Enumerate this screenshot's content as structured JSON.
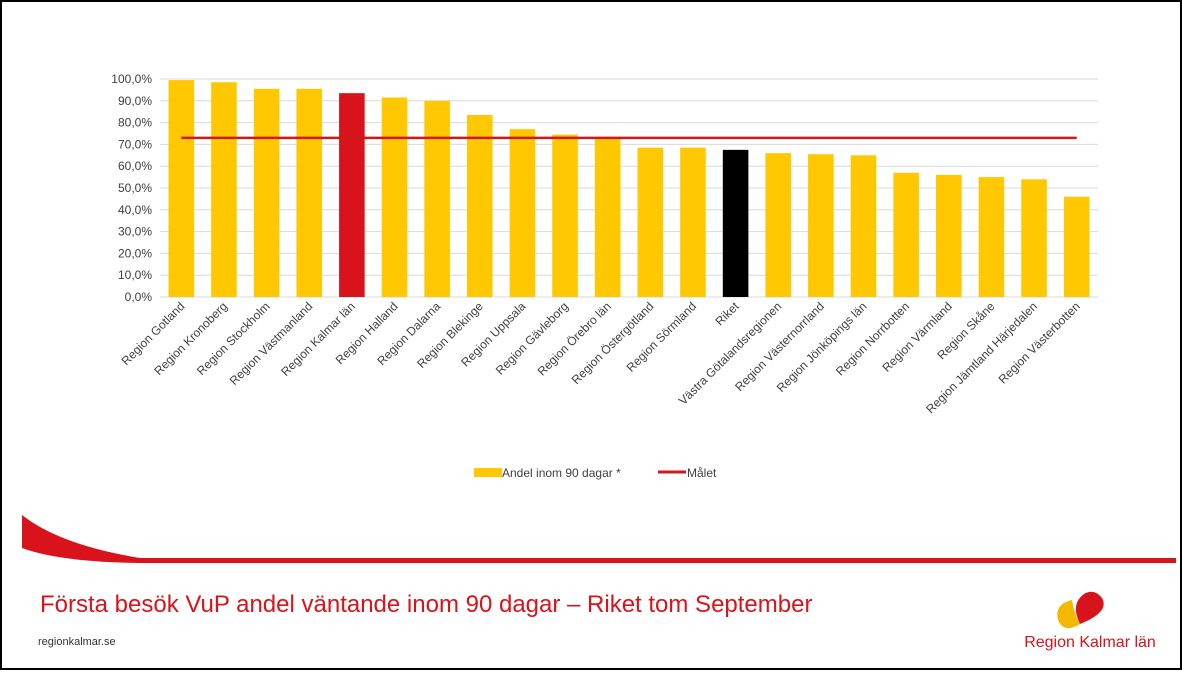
{
  "chart_data": {
    "type": "bar",
    "categories": [
      "Region Gotland",
      "Region Kronoberg",
      "Region Stockholm",
      "Region Västmanland",
      "Region Kalmar län",
      "Region Halland",
      "Region Dalarna",
      "Region Blekinge",
      "Region Uppsala",
      "Region Gävleborg",
      "Region Örebro län",
      "Region Östergötland",
      "Region Sörmland",
      "Riket",
      "Västra Götalandsregionen",
      "Region Västernorrland",
      "Region Jönköpings län",
      "Region Norrbotten",
      "Region Värmland",
      "Region Skåne",
      "Region Jämtland Härjedalen",
      "Region Västerbotten"
    ],
    "series": [
      {
        "name": "Andel inom 90 dagar *",
        "color": "#ffc800",
        "colors": [
          "#ffc800",
          "#ffc800",
          "#ffc800",
          "#ffc800",
          "#d9131b",
          "#ffc800",
          "#ffc800",
          "#ffc800",
          "#ffc800",
          "#ffc800",
          "#ffc800",
          "#ffc800",
          "#ffc800",
          "#000000",
          "#ffc800",
          "#ffc800",
          "#ffc800",
          "#ffc800",
          "#ffc800",
          "#ffc800",
          "#ffc800",
          "#ffc800"
        ],
        "values": [
          99.5,
          98.5,
          95.5,
          95.5,
          93.5,
          91.5,
          90,
          83.5,
          77,
          74.5,
          73.5,
          68.5,
          68.5,
          67.5,
          66,
          65.5,
          65,
          57,
          56,
          55,
          54,
          46
        ]
      }
    ],
    "target": {
      "name": "Målet",
      "color": "#cc1a1a",
      "value": 73
    },
    "ylim": [
      0,
      100
    ],
    "yticks": [
      {
        "value": 0,
        "label": "0,0%"
      },
      {
        "value": 10,
        "label": "10,0%"
      },
      {
        "value": 20,
        "label": "20,0%"
      },
      {
        "value": 30,
        "label": "30,0%"
      },
      {
        "value": 40,
        "label": "40,0%"
      },
      {
        "value": 50,
        "label": "50,0%"
      },
      {
        "value": 60,
        "label": "60,0%"
      },
      {
        "value": 70,
        "label": "70,0%"
      },
      {
        "value": 80,
        "label": "80,0%"
      },
      {
        "value": 90,
        "label": "90,0%"
      },
      {
        "value": 100,
        "label": "100,0%"
      }
    ],
    "grid": true
  },
  "slide": {
    "title": "Första besök VuP andel väntande inom 90 dagar – Riket tom September",
    "footer": "regionkalmar.se",
    "logo": "Region Kalmar län"
  }
}
